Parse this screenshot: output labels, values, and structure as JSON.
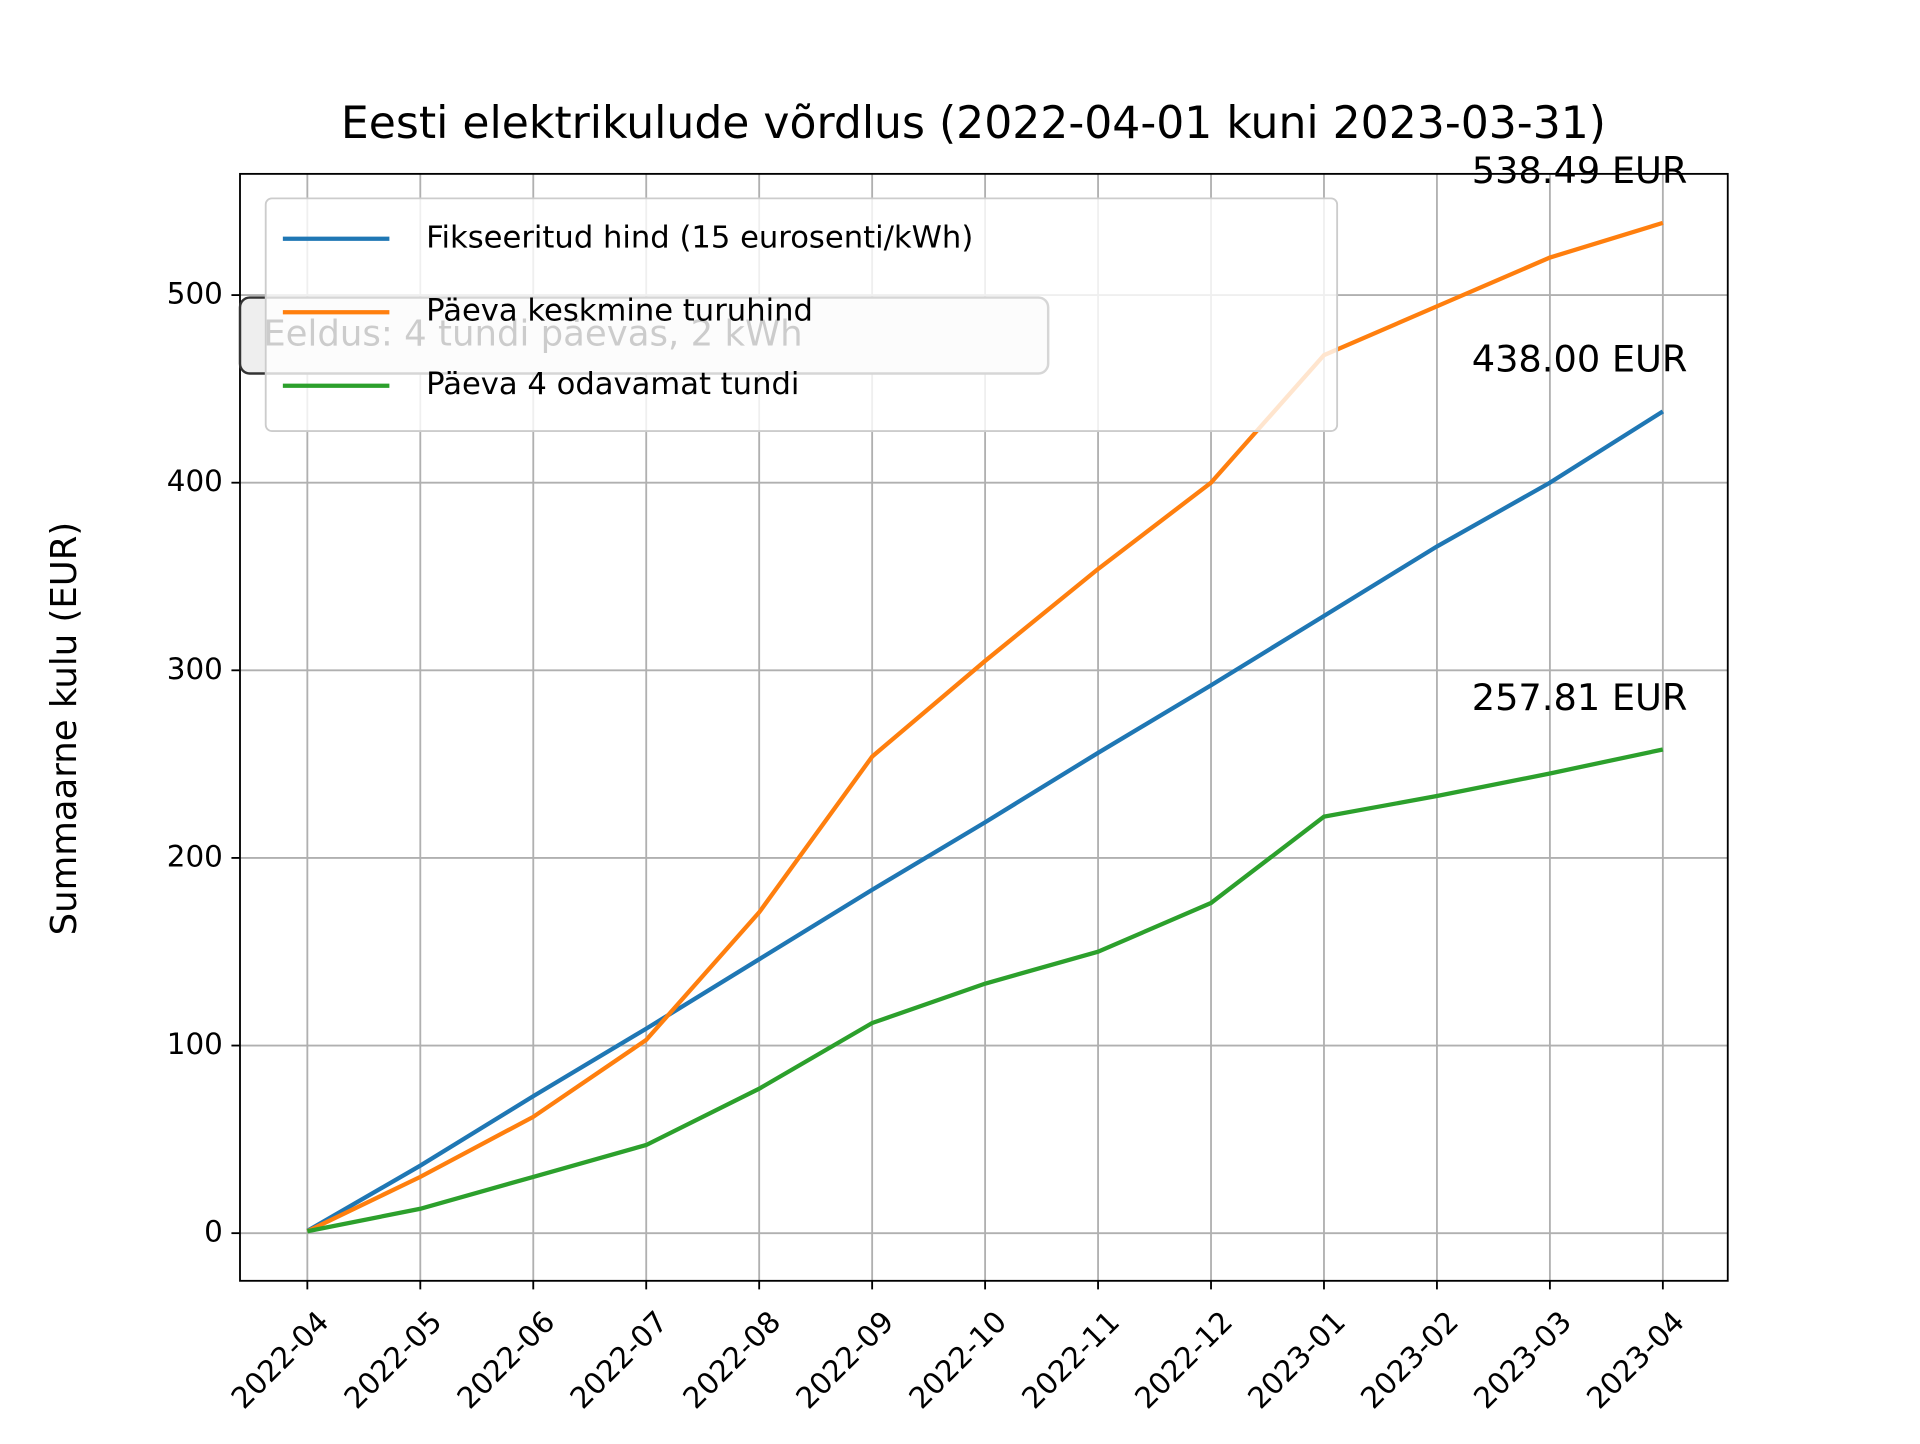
{
  "chart_data": {
    "type": "line",
    "title": "Eesti elektrikulude võrdlus (2022-04-01 kuni 2023-03-31)",
    "y_label": "Summaarne kulu (EUR)",
    "note": "Eeldus: 4 tundi päevas, 2 kWh",
    "x": [
      "2022-04",
      "2022-05",
      "2022-06",
      "2022-07",
      "2022-08",
      "2022-09",
      "2022-10",
      "2022-11",
      "2022-12",
      "2023-01",
      "2023-02",
      "2023-03",
      "2023-04"
    ],
    "series": [
      {
        "name": "Fikseeritud hind (15 eurosenti/kWh)",
        "color": "#1f77b4",
        "values": [
          1.2,
          36,
          73,
          109,
          146,
          183,
          219,
          256,
          292,
          329,
          366,
          400,
          438.0
        ],
        "end_label": "438.00 EUR"
      },
      {
        "name": "Päeva keskmine turuhind",
        "color": "#ff7f0e",
        "values": [
          1,
          30,
          62,
          103,
          171,
          254,
          305,
          354,
          400,
          468,
          494,
          520,
          538.49
        ],
        "end_label": "538.49 EUR"
      },
      {
        "name": "Päeva 4 odavamat tundi",
        "color": "#2ca02c",
        "values": [
          1,
          13,
          30,
          47,
          77,
          112,
          133,
          150,
          176,
          222,
          233,
          245,
          257.81
        ],
        "end_label": "257.81 EUR"
      }
    ],
    "xticks": [
      "2022-04",
      "2022-05",
      "2022-06",
      "2022-07",
      "2022-08",
      "2022-09",
      "2022-10",
      "2022-11",
      "2022-12",
      "2023-01",
      "2023-02",
      "2023-03",
      "2023-04"
    ],
    "ylim": [
      -25.4,
      564.6
    ],
    "yticks": [
      0,
      100,
      200,
      300,
      400,
      500
    ],
    "grid": true,
    "legend": "upper left"
  }
}
